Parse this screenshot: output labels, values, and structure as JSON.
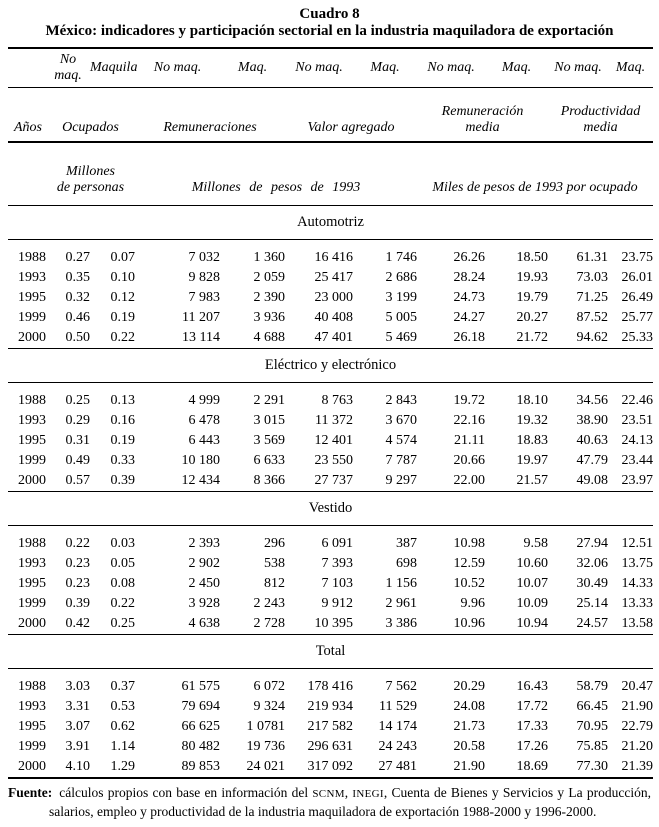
{
  "page": {
    "title": "Cuadro 8",
    "subtitle": "México: indicadores y participación sectorial en la industria maquiladora de exportación"
  },
  "header": {
    "years_label": "Años",
    "sub_columns": [
      "No maq.",
      "Maquila",
      "No maq.",
      "Maq.",
      "No maq.",
      "Maq.",
      "No maq.",
      "Maq.",
      "No maq.",
      "Maq."
    ],
    "groups": [
      "Ocupados",
      "Remuneraciones",
      "Valor agregado",
      "Remuneración\nmedia",
      "Productividad\nmedia"
    ],
    "units": [
      "Millones\nde personas",
      "Millones de pesos de 1993",
      "Miles de pesos de 1993 por ocupado"
    ]
  },
  "sections": [
    {
      "name": "Automotriz",
      "rows": [
        [
          "1988",
          "0.27",
          "0.07",
          "7 032",
          "1 360",
          "16 416",
          "1 746",
          "26.26",
          "18.50",
          "61.31",
          "23.75"
        ],
        [
          "1993",
          "0.35",
          "0.10",
          "9 828",
          "2 059",
          "25 417",
          "2 686",
          "28.24",
          "19.93",
          "73.03",
          "26.01"
        ],
        [
          "1995",
          "0.32",
          "0.12",
          "7 983",
          "2 390",
          "23 000",
          "3 199",
          "24.73",
          "19.79",
          "71.25",
          "26.49"
        ],
        [
          "1999",
          "0.46",
          "0.19",
          "11 207",
          "3 936",
          "40 408",
          "5 005",
          "24.27",
          "20.27",
          "87.52",
          "25.77"
        ],
        [
          "2000",
          "0.50",
          "0.22",
          "13 114",
          "4 688",
          "47 401",
          "5 469",
          "26.18",
          "21.72",
          "94.62",
          "25.33"
        ]
      ]
    },
    {
      "name": "Eléctrico y electrónico",
      "rows": [
        [
          "1988",
          "0.25",
          "0.13",
          "4 999",
          "2 291",
          "8 763",
          "2 843",
          "19.72",
          "18.10",
          "34.56",
          "22.46"
        ],
        [
          "1993",
          "0.29",
          "0.16",
          "6 478",
          "3 015",
          "11 372",
          "3 670",
          "22.16",
          "19.32",
          "38.90",
          "23.51"
        ],
        [
          "1995",
          "0.31",
          "0.19",
          "6 443",
          "3 569",
          "12 401",
          "4 574",
          "21.11",
          "18.83",
          "40.63",
          "24.13"
        ],
        [
          "1999",
          "0.49",
          "0.33",
          "10 180",
          "6 633",
          "23 550",
          "7 787",
          "20.66",
          "19.97",
          "47.79",
          "23.44"
        ],
        [
          "2000",
          "0.57",
          "0.39",
          "12 434",
          "8 366",
          "27 737",
          "9 297",
          "22.00",
          "21.57",
          "49.08",
          "23.97"
        ]
      ]
    },
    {
      "name": "Vestido",
      "rows": [
        [
          "1988",
          "0.22",
          "0.03",
          "2 393",
          "296",
          "6 091",
          "387",
          "10.98",
          "9.58",
          "27.94",
          "12.51"
        ],
        [
          "1993",
          "0.23",
          "0.05",
          "2 902",
          "538",
          "7 393",
          "698",
          "12.59",
          "10.60",
          "32.06",
          "13.75"
        ],
        [
          "1995",
          "0.23",
          "0.08",
          "2 450",
          "812",
          "7 103",
          "1 156",
          "10.52",
          "10.07",
          "30.49",
          "14.33"
        ],
        [
          "1999",
          "0.39",
          "0.22",
          "3 928",
          "2 243",
          "9 912",
          "2 961",
          "9.96",
          "10.09",
          "25.14",
          "13.33"
        ],
        [
          "2000",
          "0.42",
          "0.25",
          "4 638",
          "2 728",
          "10 395",
          "3 386",
          "10.96",
          "10.94",
          "24.57",
          "13.58"
        ]
      ]
    },
    {
      "name": "Total",
      "rows": [
        [
          "1988",
          "3.03",
          "0.37",
          "61 575",
          "6 072",
          "178 416",
          "7 562",
          "20.29",
          "16.43",
          "58.79",
          "20.47"
        ],
        [
          "1993",
          "3.31",
          "0.53",
          "79 694",
          "9 324",
          "219 934",
          "11 529",
          "24.08",
          "17.72",
          "66.45",
          "21.90"
        ],
        [
          "1995",
          "3.07",
          "0.62",
          "66 625",
          "1 0781",
          "217 582",
          "14 174",
          "21.73",
          "17.33",
          "70.95",
          "22.79"
        ],
        [
          "1999",
          "3.91",
          "1.14",
          "80 482",
          "19 736",
          "296 631",
          "24 243",
          "20.58",
          "17.26",
          "75.85",
          "21.20"
        ],
        [
          "2000",
          "4.10",
          "1.29",
          "89 853",
          "24 021",
          "317 092",
          "27 481",
          "21.90",
          "18.69",
          "77.30",
          "21.39"
        ]
      ]
    }
  ],
  "footer": {
    "label": "Fuente:",
    "text_before_acronyms": "cálculos propios con base en información del ",
    "acronym_1": "SCNM",
    "separator": ", ",
    "acronym_2": "INEGI",
    "text_after_acronyms": ", Cuenta de Bienes y Servicios y La producción, salarios, empleo y productividad de la industria maquiladora de exportación 1988-2000 y 1996-2000."
  }
}
